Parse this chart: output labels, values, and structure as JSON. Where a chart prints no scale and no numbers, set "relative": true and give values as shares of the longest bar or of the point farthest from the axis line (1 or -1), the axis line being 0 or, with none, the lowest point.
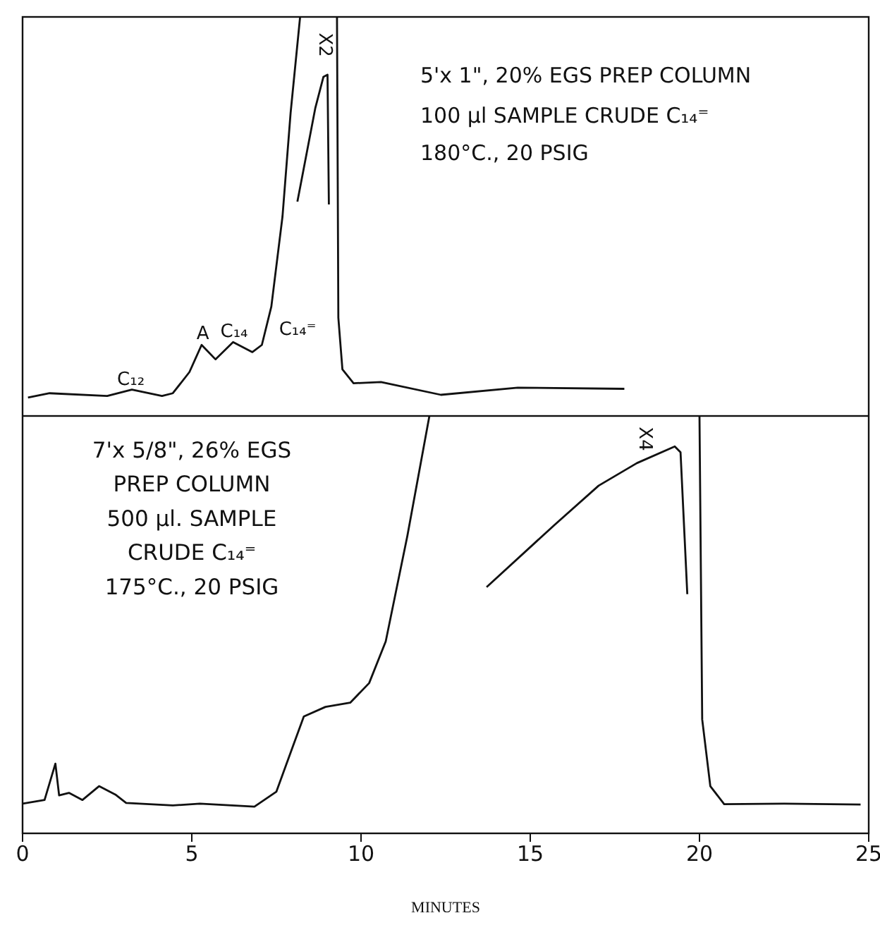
{
  "chart_data": [
    {
      "type": "line",
      "relative": true,
      "xlim": [
        0,
        25
      ],
      "xticks": [
        0,
        5,
        10,
        15,
        20,
        25
      ],
      "tick_labels": false,
      "marker": "none",
      "line_style": "solid",
      "series": [
        {
          "color": "#111111",
          "x": [
            0.16,
            0.8,
            2.5,
            3.23,
            4.12,
            4.44,
            4.93,
            5.29,
            5.7,
            6.22,
            6.79,
            7.07,
            7.35,
            7.68,
            7.92,
            8.2,
            8.7,
            9.29,
            9.33,
            9.45,
            9.78,
            10.59,
            12.36,
            14.63,
            17.78
          ],
          "values": [
            0.046,
            0.057,
            0.05,
            0.066,
            0.05,
            0.057,
            0.11,
            0.178,
            0.142,
            0.185,
            0.16,
            0.178,
            0.274,
            0.5,
            0.76,
            1,
            null,
            1,
            0.246,
            0.117,
            0.082,
            0.085,
            0.053,
            0.071,
            0.068
          ]
        },
        {
          "color": "#111111",
          "x": [
            8.12,
            8.65,
            8.89,
            9.01,
            9.05
          ],
          "values": [
            0.537,
            0.772,
            0.85,
            0.855,
            0.53
          ]
        }
      ],
      "annotations": [
        "5'x 1\", 20% EGS  PREP COLUMN",
        "100 µl  SAMPLE CRUDE C₁₄⁼",
        "180°C., 20 PSIG",
        "C₁₂",
        "A",
        "C₁₄",
        "C₁₄⁼",
        "X2"
      ]
    },
    {
      "type": "line",
      "relative": true,
      "xlim": [
        0,
        25
      ],
      "xticks": [
        0,
        5,
        10,
        15,
        20,
        25
      ],
      "tick_labels": "x",
      "xlabel": "MINUTES",
      "marker": "none",
      "line_style": "solid",
      "series": [
        {
          "color": "#111111",
          "x": [
            0,
            0.65,
            0.97,
            1.08,
            1.37,
            1.77,
            2.26,
            2.74,
            3.06,
            4.44,
            5.24,
            6.85,
            7.5,
            7.98,
            8.31,
            8.95,
            9.68,
            10.24,
            10.73,
            11.37,
            12.02,
            16,
            20,
            20.08,
            20.32,
            20.73,
            22.5,
            24.76
          ],
          "values": [
            0.071,
            0.08,
            0.167,
            0.091,
            0.097,
            0.08,
            0.113,
            0.093,
            0.073,
            0.067,
            0.071,
            0.064,
            0.1,
            0.207,
            0.28,
            0.303,
            0.313,
            0.36,
            0.46,
            0.713,
            1,
            null,
            1,
            0.273,
            0.113,
            0.07,
            0.071,
            0.069
          ]
        },
        {
          "color": "#111111",
          "x": [
            13.71,
            15.73,
            17.02,
            18.15,
            19.27,
            19.44,
            19.64
          ],
          "values": [
            0.59,
            0.74,
            0.833,
            0.887,
            0.927,
            0.913,
            0.573
          ]
        }
      ],
      "annotations": [
        "7'x 5/8\",  26% EGS",
        "PREP COLUMN",
        "500 µl. SAMPLE",
        "CRUDE C₁₄⁼",
        "175°C., 20 PSIG",
        "X4"
      ]
    }
  ]
}
